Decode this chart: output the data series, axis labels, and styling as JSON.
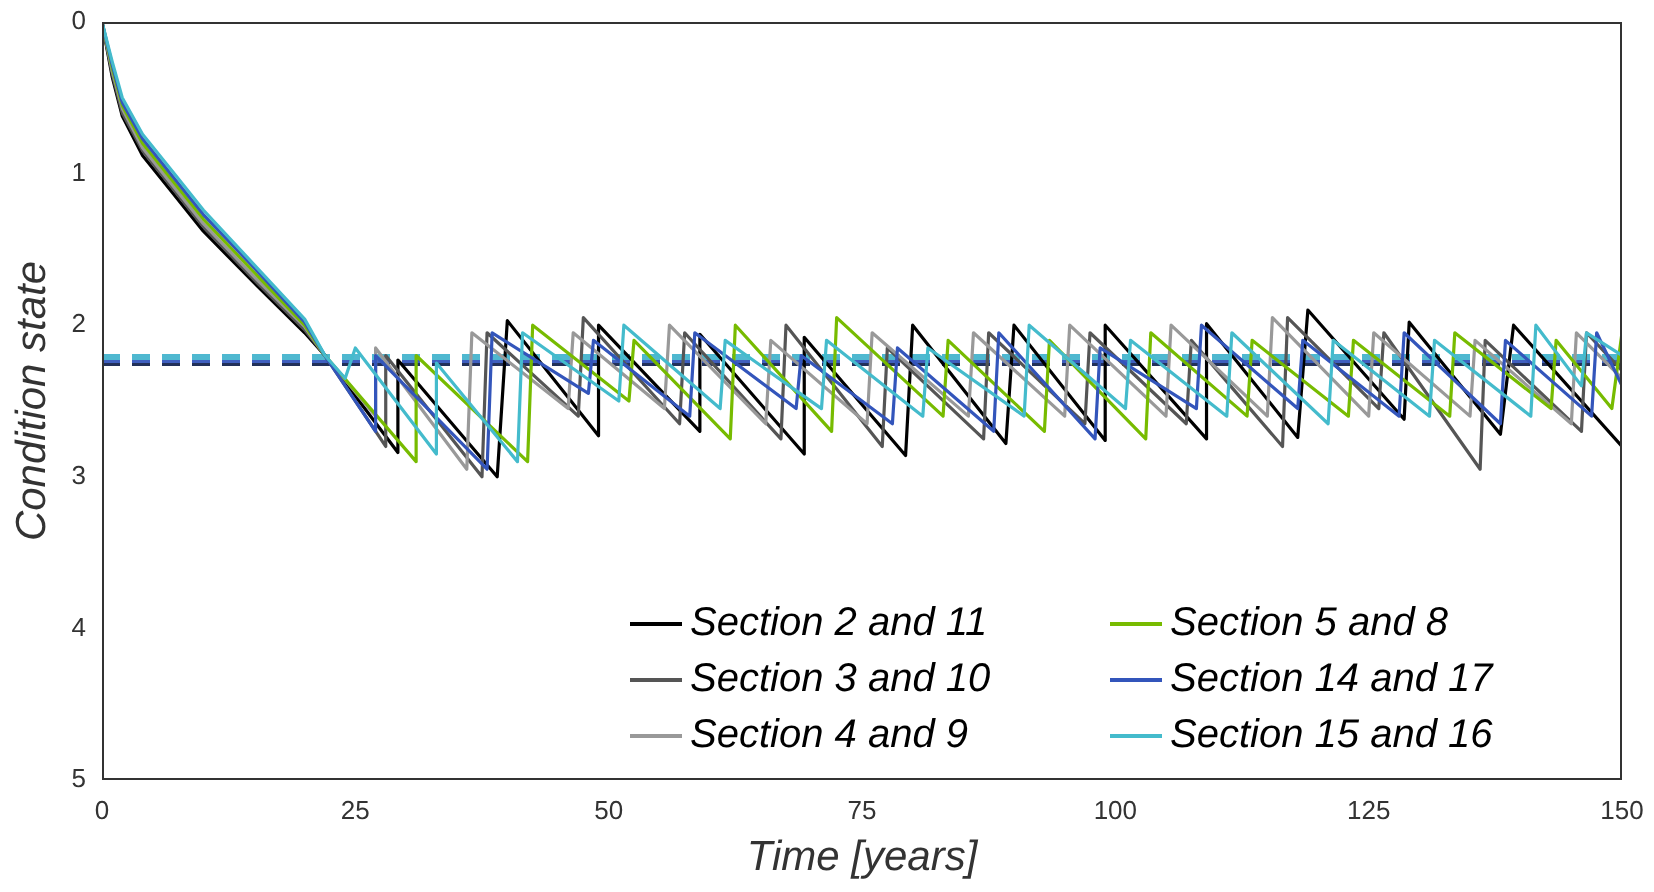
{
  "chart_data": {
    "type": "line",
    "xlabel": "Time [years]",
    "ylabel": "Condition state",
    "xlim": [
      0,
      150
    ],
    "xticks": [
      0,
      25,
      50,
      75,
      100,
      125,
      150
    ],
    "ylim": [
      5,
      0
    ],
    "yticks": [
      0,
      1,
      2,
      3,
      4,
      5
    ],
    "legend": "bottom right",
    "marker": "none",
    "grid": false,
    "ref_lines": [
      {
        "axis": "y",
        "value": 2.25,
        "color": "#22305a",
        "line_style": "dashed"
      },
      {
        "axis": "y",
        "value": 2.23,
        "color": "#3f5fbf",
        "line_style": "dashed"
      },
      {
        "axis": "y",
        "value": 2.21,
        "color": "#4fb8d0",
        "line_style": "dashed"
      }
    ],
    "series": [
      {
        "name": "Section 2 and 11",
        "color": "#000000",
        "x": [
          0,
          1,
          2,
          4,
          7,
          10,
          15,
          20,
          22,
          29.2,
          29.2,
          39,
          40,
          49,
          49,
          59,
          59,
          69.3,
          69.3,
          79.3,
          80,
          89.2,
          90,
          99,
          99,
          109,
          109,
          118,
          119,
          128.5,
          129,
          138,
          139.3,
          150
        ],
        "values": [
          0,
          0.36,
          0.62,
          0.88,
          1.13,
          1.38,
          1.72,
          2.05,
          2.2,
          2.84,
          2.23,
          3.0,
          1.97,
          2.73,
          2.0,
          2.7,
          2.06,
          2.85,
          2.08,
          2.86,
          2.0,
          2.78,
          2.0,
          2.76,
          2.0,
          2.75,
          1.99,
          2.74,
          1.9,
          2.62,
          1.98,
          2.72,
          2.0,
          2.8
        ]
      },
      {
        "name": "Section 3 and 10",
        "color": "#555555",
        "x": [
          0,
          1,
          2,
          4,
          7,
          10,
          15,
          20,
          22,
          28,
          28,
          37.5,
          38,
          47,
          47.5,
          57,
          57.5,
          67,
          67.5,
          77,
          77.5,
          87,
          87.5,
          97,
          97.5,
          107,
          107.5,
          116.5,
          117,
          126,
          126.5,
          136,
          136.5,
          146,
          146.5,
          150
        ],
        "values": [
          0,
          0.34,
          0.6,
          0.85,
          1.1,
          1.35,
          1.7,
          2.03,
          2.2,
          2.8,
          2.2,
          3.0,
          2.05,
          2.6,
          1.95,
          2.65,
          2.05,
          2.75,
          2.0,
          2.8,
          2.15,
          2.75,
          2.05,
          2.65,
          2.05,
          2.65,
          2.1,
          2.8,
          1.95,
          2.55,
          2.05,
          2.95,
          2.1,
          2.7,
          2.05,
          2.3
        ]
      },
      {
        "name": "Section 4 and 9",
        "color": "#999999",
        "x": [
          0,
          1,
          2,
          4,
          7,
          10,
          15,
          20,
          22,
          27,
          27,
          36,
          36.5,
          46,
          46.5,
          55.5,
          56,
          65.5,
          66,
          75.5,
          76,
          85.5,
          86,
          95,
          95.5,
          105,
          105.5,
          115,
          115.5,
          125,
          125.5,
          135,
          135.5,
          145,
          145.5,
          150
        ],
        "values": [
          0,
          0.32,
          0.57,
          0.83,
          1.08,
          1.33,
          1.68,
          2.01,
          2.2,
          2.6,
          2.15,
          2.95,
          2.05,
          2.55,
          2.05,
          2.55,
          2.0,
          2.65,
          2.1,
          2.65,
          2.05,
          2.6,
          2.05,
          2.6,
          2.0,
          2.6,
          2.0,
          2.6,
          1.95,
          2.6,
          2.05,
          2.6,
          2.1,
          2.65,
          2.05,
          2.35
        ]
      },
      {
        "name": "Section 5 and 8",
        "color": "#77bb00",
        "x": [
          0,
          1,
          2,
          4,
          7,
          10,
          15,
          20,
          22,
          31,
          31,
          42,
          42.5,
          52,
          52.5,
          62,
          62.5,
          72,
          72.5,
          83,
          83.5,
          93,
          93.5,
          103,
          103.5,
          113,
          113.5,
          123,
          123.5,
          133,
          133.5,
          143,
          143.5,
          149,
          150
        ],
        "values": [
          0,
          0.3,
          0.55,
          0.8,
          1.05,
          1.3,
          1.65,
          2.0,
          2.2,
          2.9,
          2.2,
          2.9,
          2.0,
          2.5,
          2.1,
          2.75,
          2.0,
          2.7,
          1.95,
          2.6,
          2.1,
          2.7,
          2.1,
          2.75,
          2.05,
          2.6,
          2.1,
          2.6,
          2.1,
          2.6,
          2.05,
          2.55,
          2.1,
          2.55,
          2.05
        ]
      },
      {
        "name": "Section 14 and 17",
        "color": "#3355bb",
        "x": [
          0,
          1,
          2,
          4,
          7,
          10,
          15,
          20,
          22,
          27,
          27,
          38,
          38.5,
          48,
          48.5,
          58,
          58.5,
          68.5,
          69,
          78,
          78.5,
          88,
          88.5,
          98,
          98.5,
          108,
          108.5,
          118,
          118.5,
          128,
          128.5,
          138,
          138.5,
          147,
          147.5,
          150
        ],
        "values": [
          0,
          0.28,
          0.53,
          0.77,
          1.02,
          1.27,
          1.62,
          1.98,
          2.2,
          2.7,
          2.2,
          2.95,
          2.05,
          2.45,
          2.1,
          2.6,
          2.05,
          2.55,
          2.2,
          2.65,
          2.15,
          2.7,
          2.05,
          2.75,
          2.15,
          2.55,
          2.0,
          2.55,
          2.1,
          2.6,
          2.05,
          2.65,
          2.1,
          2.6,
          2.05,
          2.4
        ]
      },
      {
        "name": "Section 15 and 16",
        "color": "#44bbcc",
        "x": [
          0,
          1,
          2,
          4,
          7,
          10,
          15,
          20,
          22,
          24,
          25,
          33,
          33,
          41,
          41.5,
          51,
          51.5,
          61,
          61.5,
          71,
          71.5,
          81,
          81.5,
          91,
          91.5,
          101,
          101.5,
          111,
          111.5,
          121,
          121.5,
          131,
          131.5,
          141,
          141.5,
          146,
          146.5,
          150
        ],
        "values": [
          0,
          0.26,
          0.5,
          0.74,
          0.99,
          1.24,
          1.6,
          1.96,
          2.2,
          2.35,
          2.15,
          2.85,
          2.25,
          2.9,
          2.05,
          2.5,
          2.0,
          2.55,
          2.1,
          2.55,
          2.1,
          2.6,
          2.15,
          2.6,
          2.0,
          2.55,
          2.1,
          2.6,
          2.05,
          2.65,
          2.1,
          2.6,
          2.1,
          2.6,
          2.0,
          2.4,
          2.05,
          2.2
        ]
      }
    ]
  }
}
